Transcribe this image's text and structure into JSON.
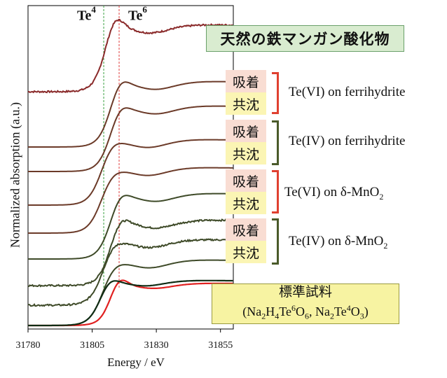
{
  "chart_data": {
    "type": "line",
    "title": "天然の鉄マンガン酸化物",
    "xlabel": "Energy / eV",
    "ylabel": "Normalized absorption  (a.u.)",
    "xlim": [
      31780,
      31860
    ],
    "x_ticks": [
      "31780",
      "31805",
      "31830",
      "31855"
    ],
    "reference_lines": [
      {
        "label": "Te",
        "sup": "4",
        "x": 31809.5,
        "color": "#3aa040"
      },
      {
        "label": "Te",
        "sup": "6",
        "x": 31815.5,
        "color": "#e04040"
      }
    ],
    "series": [
      {
        "name": "天然の鉄マンガン酸化物",
        "color": "#8a2a2a",
        "noisy": true,
        "edge": 31810,
        "peak": 31813.5,
        "height": 1.25
      },
      {
        "color": "#6b3a28",
        "edge": 31812,
        "peak": 31815.5,
        "height": 1.15
      },
      {
        "color": "#6b3a28",
        "edge": 31812,
        "peak": 31815.5,
        "height": 1.12
      },
      {
        "color": "#6b3a28",
        "edge": 31808.5,
        "peak": 31812.5,
        "height": 1.05
      },
      {
        "color": "#6b3a28",
        "edge": 31808.5,
        "peak": 31812.5,
        "height": 1.02
      },
      {
        "color": "#3e4a28",
        "edge": 31812,
        "peak": 31815.5,
        "height": 1.12
      },
      {
        "color": "#3e4a28",
        "noisy": true,
        "edge": 31812,
        "peak": 31815.5,
        "height": 1.15
      },
      {
        "color": "#3e4a28",
        "noisy": true,
        "edge": 31809,
        "peak": 31813,
        "height": 1.05
      },
      {
        "color": "#3e4a28",
        "edge": 31809,
        "peak": 31813,
        "height": 1.02
      },
      {
        "color": "#e02020",
        "ref": true,
        "edge": 31812.5,
        "peak": 31815,
        "height": 1.3
      },
      {
        "color": "#102c14",
        "ref": true,
        "edge": 31808,
        "peak": 31811.5,
        "height": 1.15
      }
    ],
    "groups": [
      {
        "label": "Te(VI) on ferrihydrite",
        "bracket_color": "#e04030",
        "tags": [
          "吸着",
          "共沈"
        ]
      },
      {
        "label": "Te(IV) on ferrihydrite",
        "bracket_color": "#4a5a2a",
        "tags": [
          "吸着",
          "共沈"
        ]
      },
      {
        "label": "Te(VI) on δ-MnO",
        "sub": "2",
        "bracket_color": "#e04030",
        "tags": [
          "吸着",
          "共沈"
        ]
      },
      {
        "label": "Te(IV) on δ-MnO",
        "sub": "2",
        "bracket_color": "#4a5a2a",
        "tags": [
          "吸着",
          "共沈"
        ]
      }
    ],
    "standard": {
      "title": "標準試料",
      "formula_parts": [
        "(Na",
        "2",
        "H",
        "4",
        "Te",
        "6",
        "O",
        "6",
        ", Na",
        "2",
        "Te",
        "4",
        "O",
        "3",
        ")"
      ]
    }
  }
}
